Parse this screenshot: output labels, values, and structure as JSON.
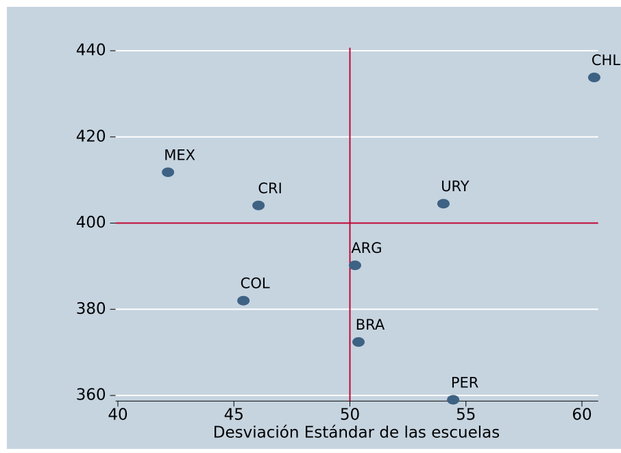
{
  "chart_data": {
    "type": "scatter",
    "x_label": "Desviación Estándar de las escuelas",
    "labels": [
      "CHL",
      "MEX",
      "CRI",
      "URY",
      "ARG",
      "COL",
      "BRA",
      "PER"
    ],
    "x": [
      60.53,
      42.16,
      46.06,
      54.03,
      50.22,
      45.41,
      50.37,
      54.45
    ],
    "values": [
      433.8,
      411.8,
      404.1,
      404.5,
      390.2,
      382.0,
      372.4,
      359.0
    ],
    "color": "#3e6283",
    "xlim": [
      39.9,
      60.7
    ],
    "ylim": [
      358.7,
      441.5
    ],
    "xticks": [
      40,
      45,
      50,
      55,
      60
    ],
    "yticks": [
      360,
      380,
      400,
      420,
      440
    ],
    "grid": true,
    "xline": 50,
    "yline": 400,
    "line_color": "#c10534"
  }
}
